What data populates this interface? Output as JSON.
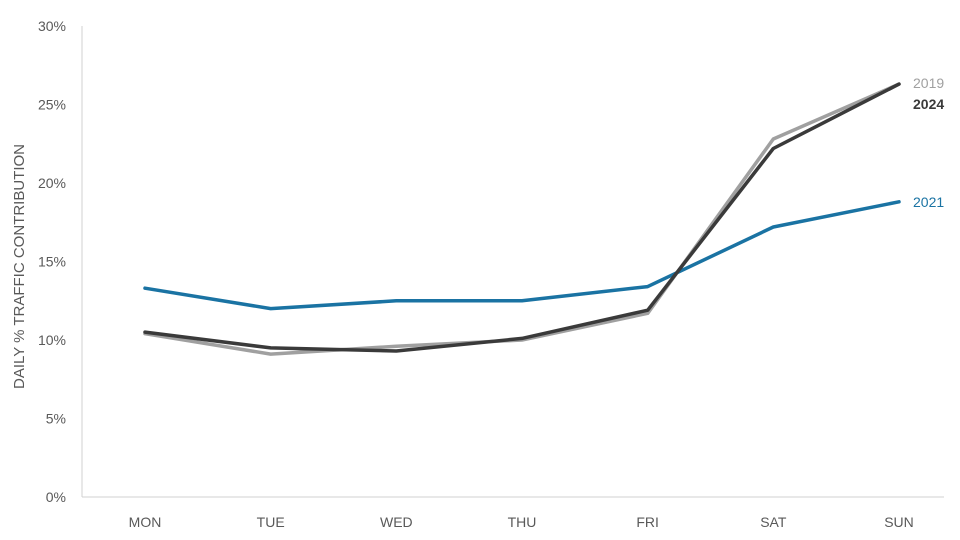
{
  "chart_data": {
    "type": "line",
    "title": "",
    "xlabel": "",
    "ylabel": "DAILY % TRAFFIC CONTRIBUTION",
    "categories": [
      "MON",
      "TUE",
      "WED",
      "THU",
      "FRI",
      "SAT",
      "SUN"
    ],
    "ylim": [
      0,
      30
    ],
    "yticks": [
      0,
      5,
      10,
      15,
      20,
      25,
      30
    ],
    "ytick_labels": [
      "0%",
      "5%",
      "10%",
      "15%",
      "20%",
      "25%",
      "30%"
    ],
    "grid": false,
    "legend": "inline labels at right end of lines",
    "series": [
      {
        "name": "2019",
        "values": [
          10.4,
          9.1,
          9.6,
          10.0,
          11.7,
          22.8,
          26.3
        ],
        "color": "#a0a0a0"
      },
      {
        "name": "2021",
        "values": [
          13.3,
          12.0,
          12.5,
          12.5,
          13.4,
          17.2,
          18.8
        ],
        "color": "#1a73a3"
      },
      {
        "name": "2024",
        "values": [
          10.5,
          9.5,
          9.3,
          10.1,
          11.9,
          22.2,
          26.3
        ],
        "color": "#3a3a3a"
      }
    ]
  }
}
